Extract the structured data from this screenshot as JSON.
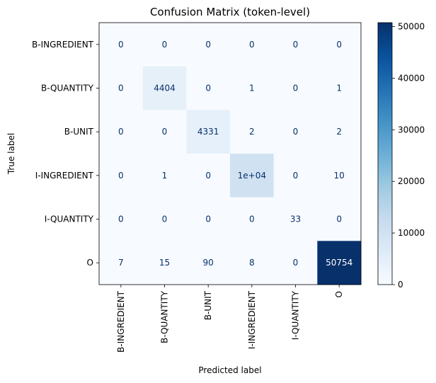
{
  "chart_data": {
    "type": "heatmap",
    "title": "Confusion Matrix (token-level)",
    "xlabel": "Predicted label",
    "ylabel": "True label",
    "row_labels": [
      "B-INGREDIENT",
      "B-QUANTITY",
      "B-UNIT",
      "I-INGREDIENT",
      "I-QUANTITY",
      "O"
    ],
    "col_labels": [
      "B-INGREDIENT",
      "B-QUANTITY",
      "B-UNIT",
      "I-INGREDIENT",
      "I-QUANTITY",
      "O"
    ],
    "values": [
      [
        0,
        0,
        0,
        0,
        0,
        0
      ],
      [
        0,
        4404,
        0,
        1,
        0,
        1
      ],
      [
        0,
        0,
        4331,
        2,
        0,
        2
      ],
      [
        0,
        1,
        0,
        10000,
        0,
        10
      ],
      [
        0,
        0,
        0,
        0,
        33,
        0
      ],
      [
        7,
        15,
        90,
        8,
        0,
        50754
      ]
    ],
    "cell_labels": [
      [
        "0",
        "0",
        "0",
        "0",
        "0",
        "0"
      ],
      [
        "0",
        "4404",
        "0",
        "1",
        "0",
        "1"
      ],
      [
        "0",
        "0",
        "4331",
        "2",
        "0",
        "2"
      ],
      [
        "0",
        "1",
        "0",
        "1e+04",
        "0",
        "10"
      ],
      [
        "0",
        "0",
        "0",
        "0",
        "33",
        "0"
      ],
      [
        "7",
        "15",
        "90",
        "8",
        "0",
        "50754"
      ]
    ],
    "colormap": "Blues",
    "color_range": [
      0,
      50754
    ],
    "colorbar_ticks": [
      0,
      10000,
      20000,
      30000,
      40000,
      50000
    ],
    "colorbar_tick_labels": [
      "0",
      "10000",
      "20000",
      "30000",
      "40000",
      "50000"
    ],
    "text_color_light": "#ffffff",
    "text_color_dark": "#08306b"
  }
}
